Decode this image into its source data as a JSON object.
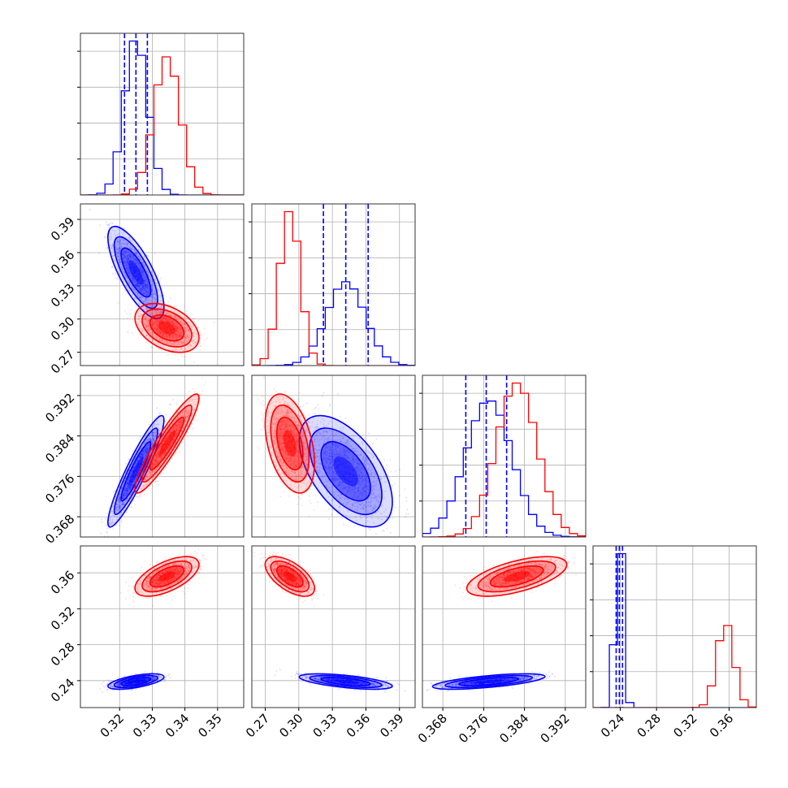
{
  "chart_data": {
    "type": "corner",
    "title": "",
    "parameters": [
      {
        "ticks": [
          0.32,
          0.33,
          0.34,
          0.35
        ],
        "tick_labels": [
          "0.32",
          "0.33",
          "0.34",
          "0.35"
        ],
        "range": [
          0.308,
          0.358
        ]
      },
      {
        "ticks": [
          0.27,
          0.3,
          0.33,
          0.36,
          0.39
        ],
        "tick_labels": [
          "0.27",
          "0.30",
          "0.33",
          "0.36",
          "0.39"
        ],
        "range": [
          0.258,
          0.404
        ]
      },
      {
        "ticks": [
          0.368,
          0.376,
          0.384,
          0.392
        ],
        "tick_labels": [
          "0.368",
          "0.376",
          "0.384",
          "0.392"
        ],
        "range": [
          0.364,
          0.396
        ]
      },
      {
        "ticks": [
          0.24,
          0.28,
          0.32,
          0.36
        ],
        "tick_labels": [
          "0.24",
          "0.28",
          "0.32",
          "0.36"
        ],
        "range": [
          0.21,
          0.39
        ]
      }
    ],
    "grid": true,
    "series": [
      {
        "color": "#0000ff",
        "means": [
          0.325,
          0.342,
          0.377,
          0.239
        ],
        "sigmas": [
          0.0035,
          0.017,
          0.0045,
          0.0035
        ],
        "correlations": {
          "1-0": -0.75,
          "2-0": 0.92,
          "2-1": -0.55,
          "3-0": 0.6,
          "3-1": -0.6,
          "3-2": 0.65
        },
        "quantiles": [
          [
            0.3215,
            0.325,
            0.3285
          ],
          [
            0.322,
            0.342,
            0.362
          ],
          [
            0.3725,
            0.3765,
            0.3805
          ],
          [
            0.2355,
            0.239,
            0.2425
          ]
        ]
      },
      {
        "color": "#ff0000",
        "means": [
          0.3345,
          0.292,
          0.3825,
          0.356
        ],
        "sigmas": [
          0.004,
          0.009,
          0.004,
          0.009
        ],
        "correlations": {
          "1-0": -0.4,
          "2-0": 0.92,
          "2-1": -0.4,
          "3-0": 0.6,
          "3-1": -0.6,
          "3-2": 0.6
        },
        "quantiles": null
      }
    ]
  }
}
